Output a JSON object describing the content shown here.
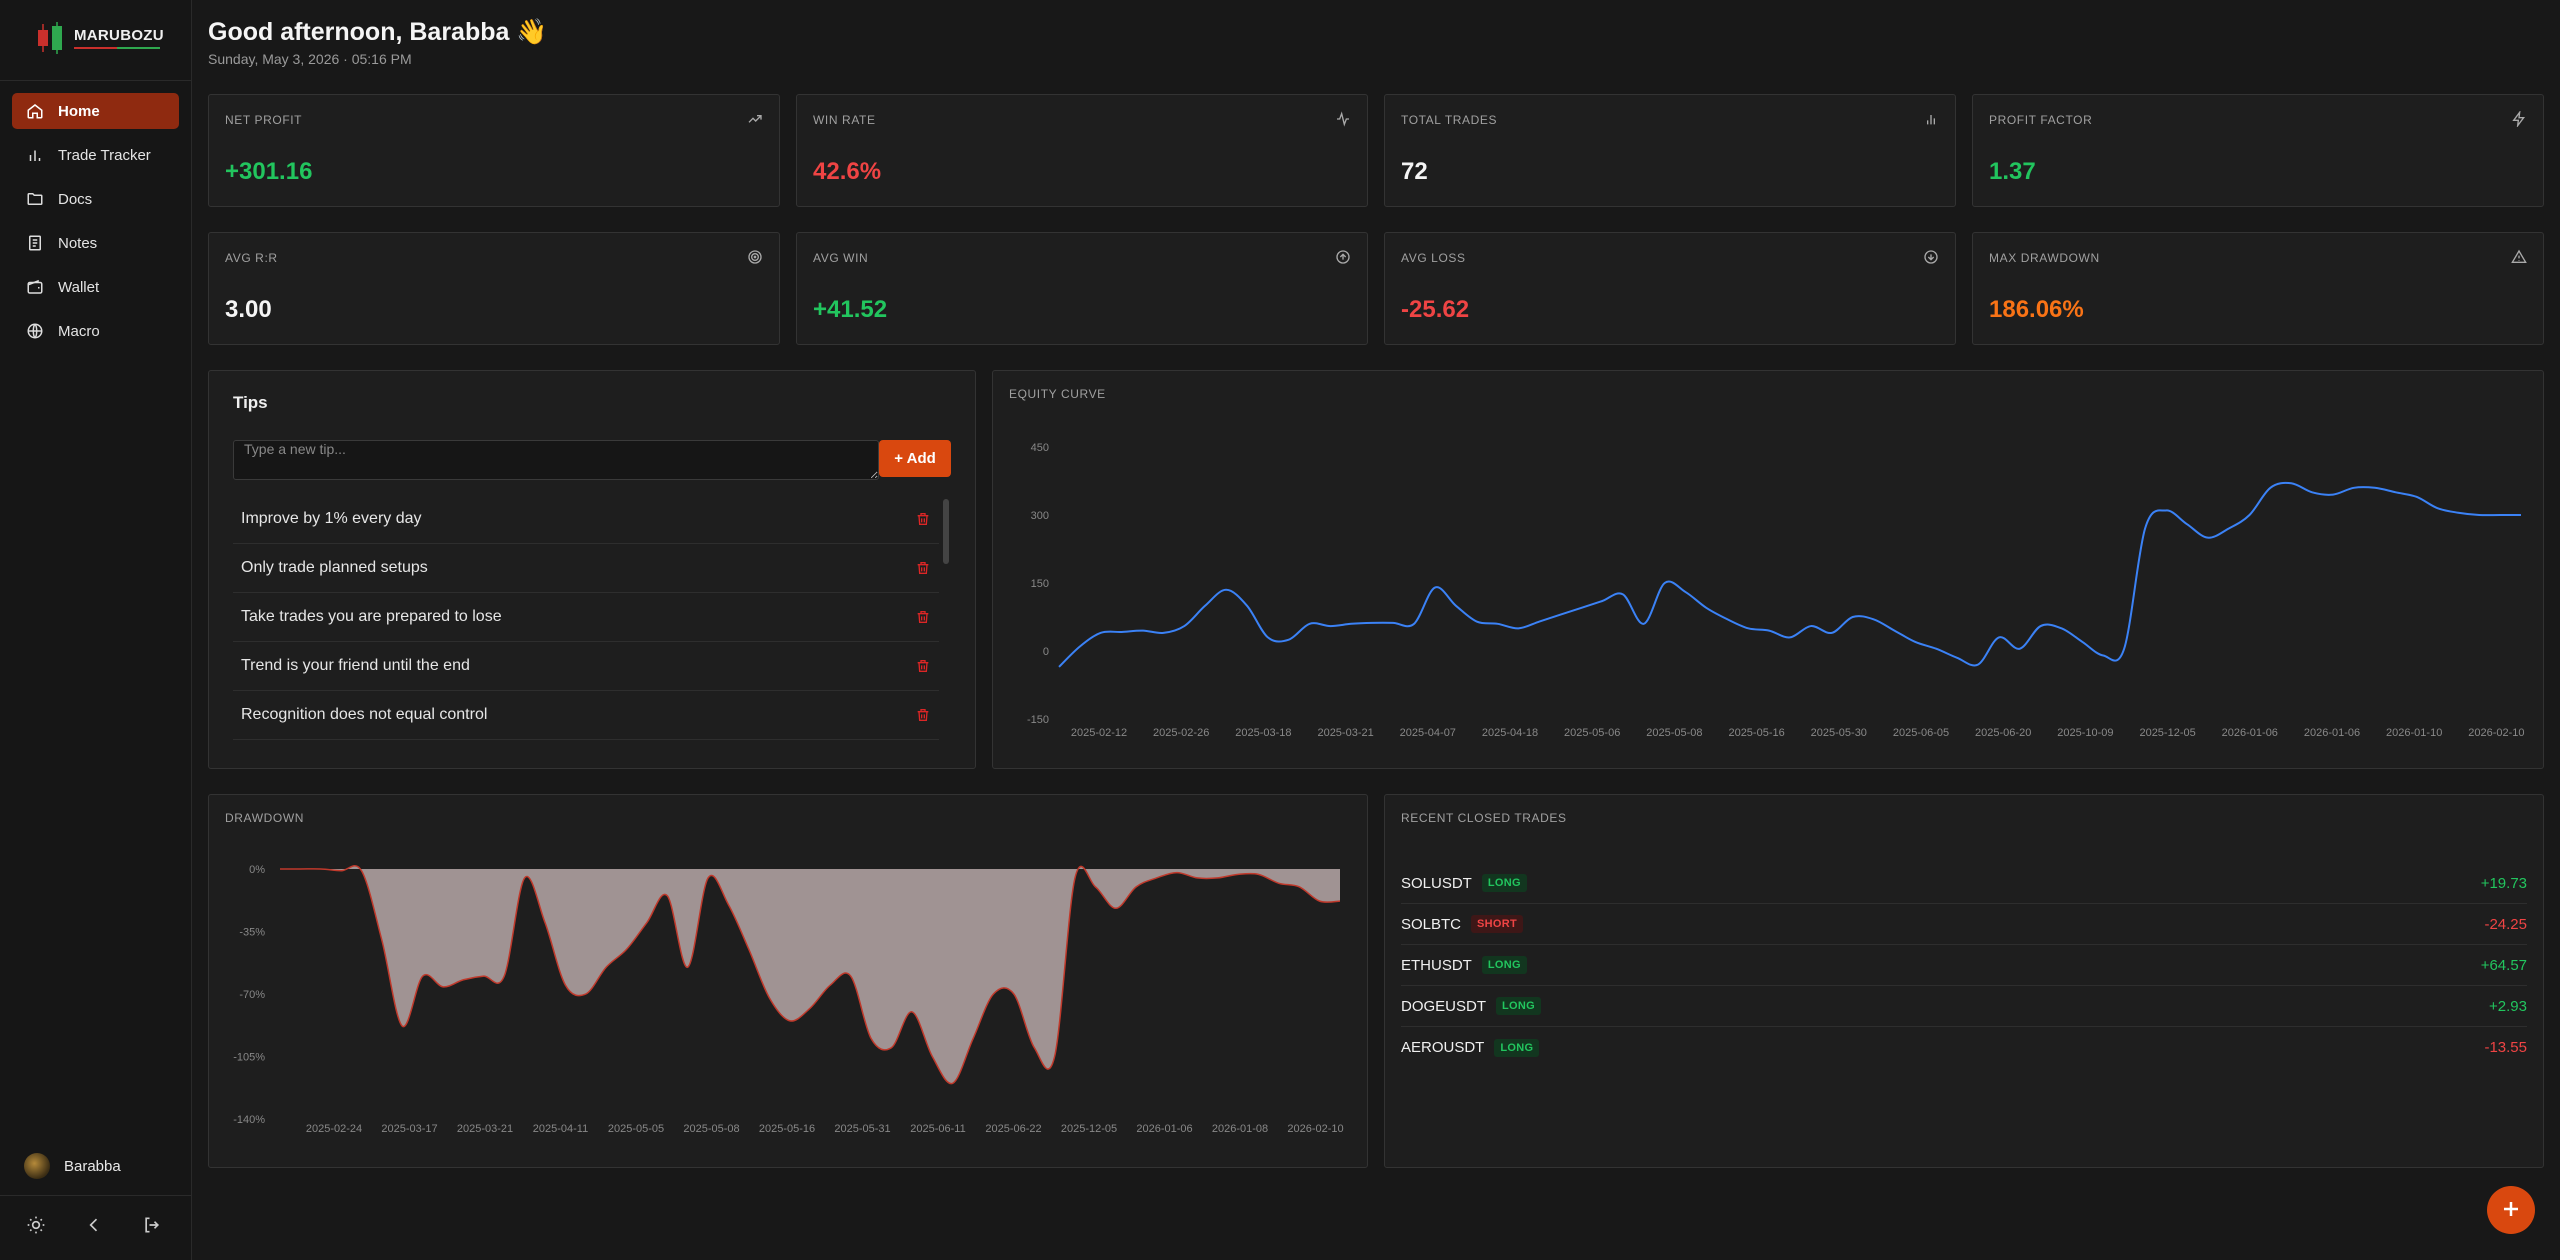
{
  "app": {
    "name": "MARUBOZU"
  },
  "sidebar": {
    "items": [
      {
        "label": "Home",
        "icon": "home-icon",
        "active": true
      },
      {
        "label": "Trade Tracker",
        "icon": "bar-chart-icon"
      },
      {
        "label": "Docs",
        "icon": "folder-icon"
      },
      {
        "label": "Notes",
        "icon": "notes-icon"
      },
      {
        "label": "Wallet",
        "icon": "wallet-icon"
      },
      {
        "label": "Macro",
        "icon": "globe-icon"
      }
    ],
    "user": "Barabba"
  },
  "header": {
    "greeting": "Good afternoon, Barabba 👋",
    "date": "Sunday, May 3, 2026 · 05:16 PM"
  },
  "stats": [
    {
      "label": "NET PROFIT",
      "value": "+301.16",
      "color": "#22c55e",
      "icon": "trend-up-icon"
    },
    {
      "label": "WIN RATE",
      "value": "42.6%",
      "color": "#ef4444",
      "icon": "activity-icon"
    },
    {
      "label": "TOTAL TRADES",
      "value": "72",
      "color": "#f5f5f5",
      "icon": "bar-chart-icon"
    },
    {
      "label": "PROFIT FACTOR",
      "value": "1.37",
      "color": "#22c55e",
      "icon": "lightning-icon"
    },
    {
      "label": "AVG R:R",
      "value": "3.00",
      "color": "#f5f5f5",
      "icon": "target-icon"
    },
    {
      "label": "AVG WIN",
      "value": "+41.52",
      "color": "#22c55e",
      "icon": "arrow-up-circle-icon"
    },
    {
      "label": "AVG LOSS",
      "value": "-25.62",
      "color": "#ef4444",
      "icon": "arrow-down-circle-icon"
    },
    {
      "label": "MAX DRAWDOWN",
      "value": "186.06%",
      "color": "#f97316",
      "icon": "warning-icon"
    }
  ],
  "tips": {
    "title": "Tips",
    "placeholder": "Type a new tip...",
    "add_label": "+ Add",
    "items": [
      "Improve by 1% every day",
      "Only trade planned setups",
      "Take trades you are prepared to lose",
      "Trend is your friend until the end",
      "Recognition does not equal control"
    ]
  },
  "recent_trades": {
    "title": "RECENT CLOSED TRADES",
    "rows": [
      {
        "symbol": "SOLUSDT",
        "side": "LONG",
        "pnl": "+19.73"
      },
      {
        "symbol": "SOLBTC",
        "side": "SHORT",
        "pnl": "-24.25"
      },
      {
        "symbol": "ETHUSDT",
        "side": "LONG",
        "pnl": "+64.57"
      },
      {
        "symbol": "DOGEUSDT",
        "side": "LONG",
        "pnl": "+2.93"
      },
      {
        "symbol": "AEROUSDT",
        "side": "LONG",
        "pnl": "-13.55"
      }
    ]
  },
  "chart_data": [
    {
      "type": "line",
      "title": "EQUITY CURVE",
      "color": "#3b82f6",
      "ylim": [
        -150,
        450
      ],
      "yticks": [
        450,
        300,
        150,
        0,
        -150
      ],
      "xticks": [
        "2025-02-12",
        "2025-02-26",
        "2025-03-18",
        "2025-03-21",
        "2025-04-07",
        "2025-04-18",
        "2025-05-06",
        "2025-05-08",
        "2025-05-16",
        "2025-05-30",
        "2025-06-05",
        "2025-06-20",
        "2025-10-09",
        "2025-12-05",
        "2026-01-06",
        "2026-01-06",
        "2026-01-10",
        "2026-02-10"
      ],
      "values": [
        -35,
        10,
        40,
        42,
        45,
        40,
        55,
        100,
        135,
        100,
        30,
        25,
        60,
        55,
        60,
        62,
        62,
        60,
        140,
        100,
        65,
        60,
        50,
        65,
        80,
        95,
        110,
        125,
        60,
        150,
        130,
        95,
        70,
        50,
        45,
        30,
        55,
        40,
        75,
        70,
        45,
        20,
        5,
        -15,
        -30,
        30,
        5,
        55,
        50,
        20,
        -10,
        5,
        270,
        310,
        280,
        250,
        270,
        300,
        360,
        370,
        350,
        345,
        360,
        360,
        350,
        340,
        315,
        305,
        300,
        300,
        300
      ]
    },
    {
      "type": "area",
      "title": "DRAWDOWN",
      "fill": "#a89a9a",
      "stroke": "#c0392b",
      "ylim": [
        -140,
        0
      ],
      "yticks": [
        "0%",
        "-35%",
        "-70%",
        "-105%",
        "-140%"
      ],
      "xticks": [
        "2025-02-24",
        "2025-03-17",
        "2025-03-21",
        "2025-04-11",
        "2025-05-05",
        "2025-05-08",
        "2025-05-16",
        "2025-05-31",
        "2025-06-11",
        "2025-06-22",
        "2025-12-05",
        "2026-01-06",
        "2026-01-08",
        "2026-02-10"
      ],
      "values": [
        0,
        0,
        0,
        -1,
        -1,
        -40,
        -88,
        -60,
        -66,
        -62,
        -60,
        -60,
        -5,
        -30,
        -65,
        -70,
        -55,
        -45,
        -30,
        -15,
        -55,
        -5,
        -20,
        -45,
        -72,
        -85,
        -78,
        -65,
        -60,
        -95,
        -100,
        -80,
        -105,
        -120,
        -95,
        -70,
        -70,
        -100,
        -105,
        -5,
        -10,
        -22,
        -10,
        -5,
        -2,
        -5,
        -5,
        -3,
        -3,
        -8,
        -10,
        -18,
        -18
      ]
    }
  ]
}
